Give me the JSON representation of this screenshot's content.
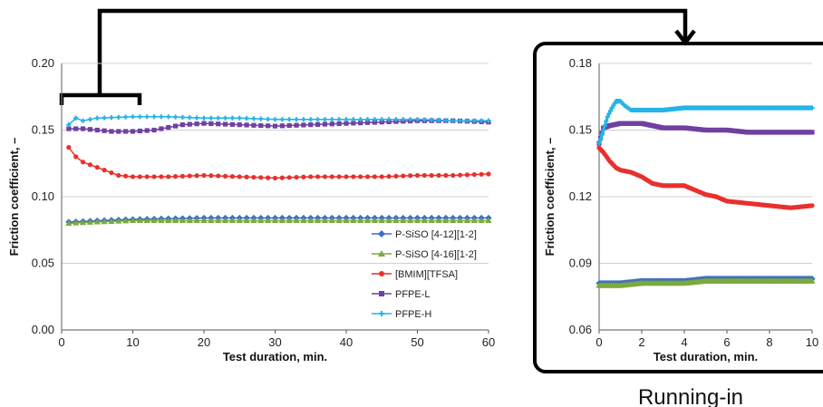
{
  "caption": "Running-in",
  "colors": {
    "P-SiSO [4-12][1-2]": "#3a6fc4",
    "P-SiSO [4-16][1-2]": "#7daa3c",
    "[BMIM][TFSA]": "#e8302c",
    "PFPE-L": "#7040a0",
    "PFPE-H": "#25b4e6"
  },
  "chart_data": [
    {
      "type": "line",
      "xlabel": "Test duration, min.",
      "ylabel": "Friction coefficient, –",
      "xlim": [
        0,
        60
      ],
      "ylim": [
        0,
        0.2
      ],
      "xticks": [
        "0",
        "10",
        "20",
        "30",
        "40",
        "50",
        "60"
      ],
      "yticks": [
        "0.00",
        "0.05",
        "0.10",
        "0.15",
        "0.20"
      ],
      "grid": true,
      "legend": "bottom-right",
      "series": [
        {
          "name": "P-SiSO [4-12][1-2]",
          "marker": "diamond",
          "x": [
            1,
            5,
            10,
            20,
            30,
            40,
            50,
            60
          ],
          "y": [
            0.081,
            0.082,
            0.083,
            0.084,
            0.084,
            0.084,
            0.084,
            0.084
          ]
        },
        {
          "name": "P-SiSO [4-16][1-2]",
          "marker": "triangle",
          "x": [
            1,
            5,
            10,
            20,
            30,
            40,
            50,
            60
          ],
          "y": [
            0.08,
            0.081,
            0.082,
            0.082,
            0.082,
            0.082,
            0.082,
            0.082
          ]
        },
        {
          "name": "[BMIM][TFSA]",
          "marker": "circle",
          "x": [
            1,
            2,
            3,
            4,
            5,
            6,
            7,
            8,
            10,
            15,
            20,
            25,
            30,
            35,
            40,
            45,
            50,
            55,
            60
          ],
          "y": [
            0.137,
            0.13,
            0.126,
            0.124,
            0.122,
            0.12,
            0.118,
            0.116,
            0.115,
            0.115,
            0.116,
            0.115,
            0.114,
            0.115,
            0.115,
            0.115,
            0.116,
            0.116,
            0.117
          ]
        },
        {
          "name": "PFPE-L",
          "marker": "square",
          "x": [
            1,
            3,
            5,
            7,
            10,
            13,
            15,
            17,
            20,
            25,
            30,
            35,
            40,
            45,
            50,
            55,
            60
          ],
          "y": [
            0.151,
            0.151,
            0.15,
            0.149,
            0.149,
            0.15,
            0.152,
            0.154,
            0.155,
            0.154,
            0.153,
            0.154,
            0.155,
            0.156,
            0.157,
            0.157,
            0.156
          ]
        },
        {
          "name": "PFPE-H",
          "marker": "cross",
          "x": [
            1,
            2,
            3,
            5,
            10,
            15,
            20,
            25,
            30,
            35,
            40,
            45,
            50,
            55,
            60
          ],
          "y": [
            0.154,
            0.159,
            0.157,
            0.159,
            0.16,
            0.16,
            0.159,
            0.159,
            0.158,
            0.158,
            0.158,
            0.158,
            0.158,
            0.157,
            0.157
          ]
        }
      ]
    },
    {
      "type": "line",
      "xlabel": "Test duration, min.",
      "ylabel": "Friction coefficient, –",
      "xlim": [
        0,
        10
      ],
      "ylim": [
        0.06,
        0.18
      ],
      "xticks": [
        "0",
        "2",
        "4",
        "6",
        "8",
        "10"
      ],
      "yticks": [
        "0.06",
        "0.09",
        "0.12",
        "0.15",
        "0.18"
      ],
      "grid": true,
      "series": [
        {
          "name": "P-SiSO [4-12][1-2]",
          "marker": "diamond",
          "x": [
            0,
            1,
            2,
            3,
            4,
            5,
            6,
            7,
            8,
            9,
            10
          ],
          "y": [
            0.081,
            0.081,
            0.082,
            0.082,
            0.082,
            0.083,
            0.083,
            0.083,
            0.083,
            0.083,
            0.083
          ]
        },
        {
          "name": "P-SiSO [4-16][1-2]",
          "marker": "triangle",
          "x": [
            0,
            1,
            2,
            3,
            4,
            5,
            6,
            7,
            8,
            9,
            10
          ],
          "y": [
            0.08,
            0.08,
            0.081,
            0.081,
            0.081,
            0.082,
            0.082,
            0.082,
            0.082,
            0.082,
            0.082
          ]
        },
        {
          "name": "[BMIM][TFSA]",
          "marker": "circle",
          "x": [
            0,
            0.2,
            0.5,
            0.8,
            1,
            1.5,
            2,
            2.5,
            3,
            3.5,
            4,
            4.5,
            5,
            5.5,
            6,
            7,
            8,
            9,
            10
          ],
          "y": [
            0.142,
            0.14,
            0.136,
            0.133,
            0.132,
            0.131,
            0.129,
            0.126,
            0.125,
            0.125,
            0.125,
            0.123,
            0.121,
            0.12,
            0.118,
            0.117,
            0.116,
            0.115,
            0.116
          ]
        },
        {
          "name": "PFPE-L",
          "marker": "square",
          "x": [
            0,
            0.2,
            0.5,
            1,
            1.5,
            2,
            2.5,
            3,
            4,
            5,
            6,
            7,
            8,
            9,
            10
          ],
          "y": [
            0.144,
            0.151,
            0.152,
            0.153,
            0.153,
            0.153,
            0.152,
            0.151,
            0.151,
            0.15,
            0.15,
            0.149,
            0.149,
            0.149,
            0.149
          ]
        },
        {
          "name": "PFPE-H",
          "marker": "cross",
          "x": [
            0,
            0.2,
            0.4,
            0.6,
            0.8,
            1,
            1.2,
            1.5,
            2,
            3,
            4,
            5,
            6,
            7,
            8,
            9,
            10
          ],
          "y": [
            0.144,
            0.15,
            0.156,
            0.16,
            0.163,
            0.163,
            0.161,
            0.159,
            0.159,
            0.159,
            0.16,
            0.16,
            0.16,
            0.16,
            0.16,
            0.16,
            0.16
          ]
        }
      ]
    }
  ]
}
